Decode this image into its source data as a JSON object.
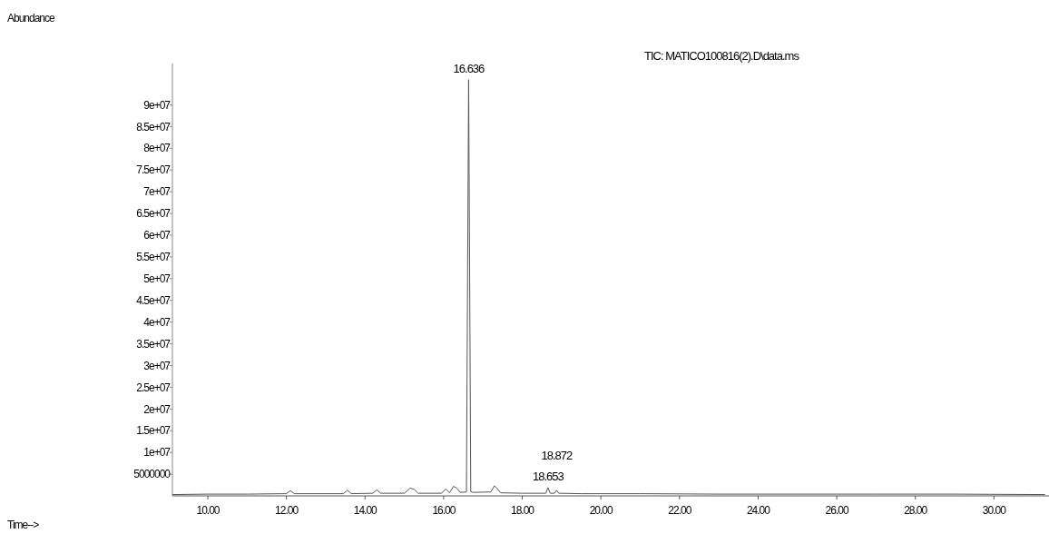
{
  "chart_data": {
    "type": "line",
    "title": "TIC: MATICO100816(2).D\\data.ms",
    "x": [
      9.1,
      10,
      11,
      12,
      12.1,
      12.2,
      13,
      13.45,
      13.55,
      13.65,
      14.2,
      14.3,
      14.4,
      15,
      15.15,
      15.25,
      15.35,
      15.95,
      16.05,
      16.15,
      16.25,
      16.33,
      16.42,
      16.58,
      16.636,
      16.69,
      16.75,
      17.2,
      17.29,
      17.36,
      17.45,
      18,
      18.6,
      18.653,
      18.71,
      18.82,
      18.872,
      18.93,
      19.5,
      21,
      23,
      25,
      27,
      29,
      31.3
    ],
    "series": [
      {
        "color": "#555555",
        "values": [
          300000,
          400000,
          400000,
          500000,
          1200000,
          500000,
          500000,
          500000,
          1300000,
          500000,
          600000,
          1400000,
          600000,
          600000,
          1800000,
          1500000,
          600000,
          600000,
          1600000,
          700000,
          2200000,
          1800000,
          800000,
          900000,
          95800000,
          1000000,
          800000,
          900000,
          2300000,
          1700000,
          700000,
          600000,
          600000,
          1900000,
          600000,
          600000,
          1300000,
          600000,
          500000,
          500000,
          400000,
          400000,
          400000,
          400000,
          300000
        ]
      }
    ],
    "annotations": [
      "Abundance",
      "Time-->",
      {
        "text": "16.636",
        "x": 16.636,
        "y": 95800000
      },
      {
        "text": "18.653",
        "x": 18.653,
        "y": 1900000
      },
      {
        "text": "18.872",
        "x": 18.872,
        "y": 1300000
      }
    ],
    "xlim": [
      9.1,
      31.4
    ],
    "xticks": [
      {
        "value": 10,
        "label": "10.00"
      },
      {
        "value": 12,
        "label": "12.00"
      },
      {
        "value": 14,
        "label": "14.00"
      },
      {
        "value": 16,
        "label": "16.00"
      },
      {
        "value": 18,
        "label": "18.00"
      },
      {
        "value": 20,
        "label": "20.00"
      },
      {
        "value": 22,
        "label": "22.00"
      },
      {
        "value": 24,
        "label": "24.00"
      },
      {
        "value": 26,
        "label": "26.00"
      },
      {
        "value": 28,
        "label": "28.00"
      },
      {
        "value": 30,
        "label": "30.00"
      }
    ],
    "ylim": [
      0,
      99500000
    ],
    "yticks": [
      {
        "value": 5000000,
        "label": "5000000"
      },
      {
        "value": 10000000,
        "label": "1e+07"
      },
      {
        "value": 15000000,
        "label": "1.5e+07"
      },
      {
        "value": 20000000,
        "label": "2e+07"
      },
      {
        "value": 25000000,
        "label": "2.5e+07"
      },
      {
        "value": 30000000,
        "label": "3e+07"
      },
      {
        "value": 35000000,
        "label": "3.5e+07"
      },
      {
        "value": 40000000,
        "label": "4e+07"
      },
      {
        "value": 45000000,
        "label": "4.5e+07"
      },
      {
        "value": 50000000,
        "label": "5e+07"
      },
      {
        "value": 55000000,
        "label": "5.5e+07"
      },
      {
        "value": 60000000,
        "label": "6e+07"
      },
      {
        "value": 65000000,
        "label": "6.5e+07"
      },
      {
        "value": 70000000,
        "label": "7e+07"
      },
      {
        "value": 75000000,
        "label": "7.5e+07"
      },
      {
        "value": 80000000,
        "label": "8e+07"
      },
      {
        "value": 85000000,
        "label": "8.5e+07"
      },
      {
        "value": 90000000,
        "label": "9e+07"
      }
    ],
    "grid": false
  }
}
